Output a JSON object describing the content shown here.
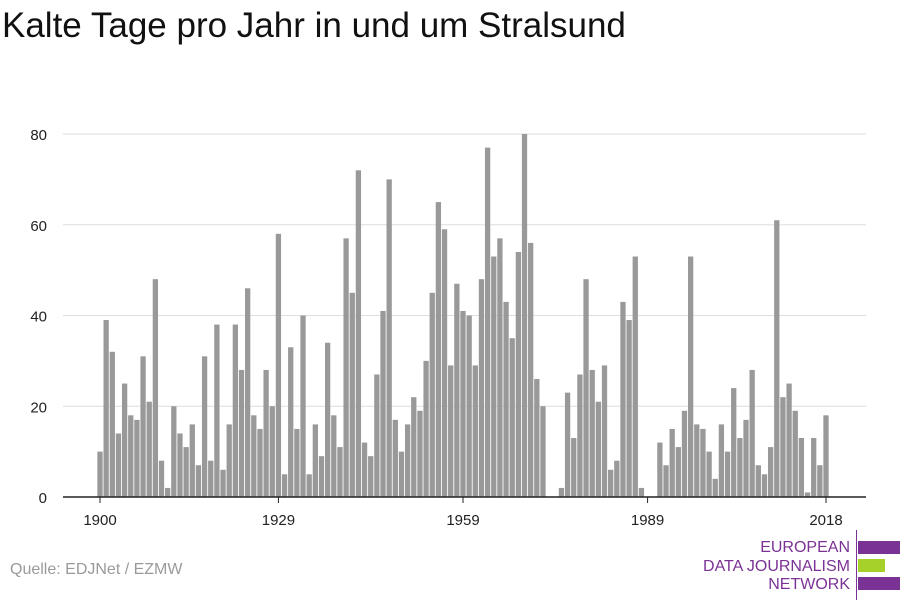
{
  "title": "Kalte Tage pro Jahr in und um Stralsund",
  "source": "Quelle: EDJNet / EZMW",
  "logo": {
    "lines": [
      "EUROPEAN",
      "DATA JOURNALISM",
      "NETWORK"
    ],
    "colors": {
      "purple": "#7b3295",
      "green": "#a6d02a"
    }
  },
  "chart_data": {
    "type": "bar",
    "title": "Kalte Tage pro Jahr in und um Stralsund",
    "xlabel": "",
    "ylabel": "",
    "x_start": 1900,
    "x_end": 2018,
    "x_ticks": [
      1900,
      1929,
      1959,
      1989,
      2018
    ],
    "y_ticks": [
      0,
      20,
      40,
      60,
      80
    ],
    "ylim": [
      0,
      80
    ],
    "grid": true,
    "bar_color": "#999999",
    "values": [
      10,
      39,
      32,
      14,
      25,
      18,
      17,
      31,
      21,
      48,
      8,
      2,
      20,
      14,
      11,
      16,
      7,
      31,
      8,
      38,
      6,
      16,
      38,
      28,
      46,
      18,
      15,
      28,
      20,
      58,
      5,
      33,
      15,
      40,
      5,
      16,
      9,
      34,
      18,
      11,
      57,
      45,
      72,
      12,
      9,
      27,
      41,
      70,
      17,
      10,
      16,
      22,
      19,
      30,
      45,
      65,
      59,
      29,
      47,
      41,
      40,
      29,
      48,
      77,
      53,
      57,
      43,
      35,
      54,
      80,
      56,
      26,
      20,
      0,
      0,
      2,
      23,
      13,
      27,
      48,
      28,
      21,
      29,
      6,
      8,
      43,
      39,
      53,
      2,
      0,
      0,
      12,
      7,
      15,
      11,
      19,
      53,
      16,
      15,
      10,
      4,
      16,
      10,
      24,
      13,
      17,
      28,
      7,
      5,
      11,
      61,
      22,
      25,
      19,
      13,
      1,
      13,
      7,
      18
    ]
  }
}
